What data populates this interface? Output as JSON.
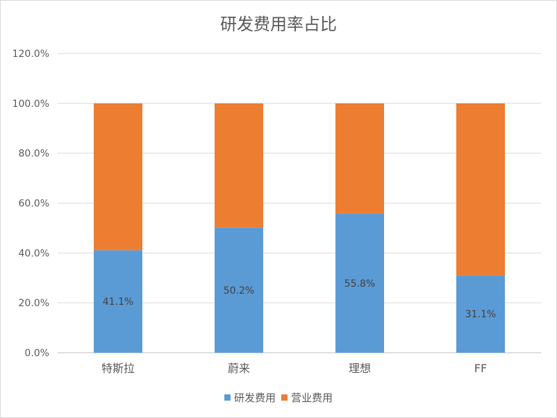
{
  "chart_data": {
    "type": "bar",
    "stacked": true,
    "title": "研发费用率占比",
    "categories": [
      "特斯拉",
      "蔚来",
      "理想",
      "FF"
    ],
    "series": [
      {
        "name": "研发费用",
        "values": [
          41.1,
          50.2,
          55.8,
          31.1
        ],
        "labels": [
          "41.1%",
          "50.2%",
          "55.8%",
          "31.1%"
        ],
        "color": "#5b9bd5"
      },
      {
        "name": "营业费用",
        "values": [
          58.9,
          49.8,
          44.2,
          68.9
        ],
        "color": "#ed7d31"
      }
    ],
    "ylim": [
      0,
      120
    ],
    "yticks": [
      "0.0%",
      "20.0%",
      "40.0%",
      "60.0%",
      "80.0%",
      "100.0%",
      "120.0%"
    ],
    "grid": true,
    "legend_position": "bottom"
  }
}
